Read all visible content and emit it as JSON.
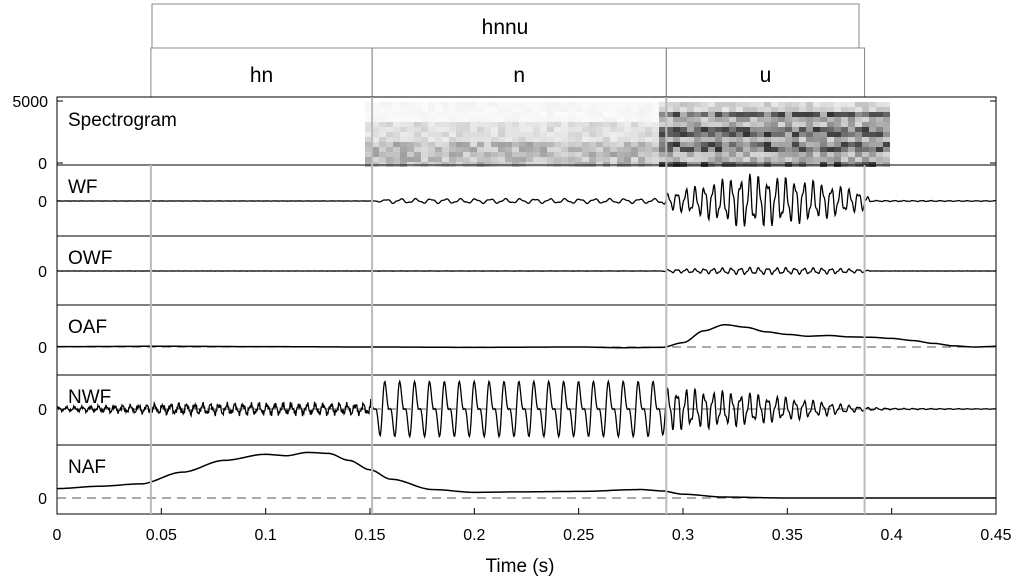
{
  "word": {
    "label": "hnnu"
  },
  "segments": [
    {
      "label": "hn",
      "start": 0.045,
      "end": 0.151
    },
    {
      "label": "n",
      "start": 0.151,
      "end": 0.292
    },
    {
      "label": "u",
      "start": 0.292,
      "end": 0.387
    }
  ],
  "boundaries": [
    0.045,
    0.151,
    0.292,
    0.387
  ],
  "chart_data": {
    "type": "line",
    "xlabel": "Time (s)",
    "xlim": [
      0,
      0.45
    ],
    "xticks": [
      0,
      0.05,
      0.1,
      0.15,
      0.2,
      0.25,
      0.3,
      0.35,
      0.4,
      0.45
    ],
    "xtick_labels": [
      "0",
      "0.05",
      "0.1",
      "0.15",
      "0.2",
      "0.25",
      "0.3",
      "0.35",
      "0.4",
      "0.45"
    ],
    "grid": false,
    "panels": [
      {
        "id": "spectrogram",
        "label": "Spectrogram",
        "type": "heatmap",
        "ylim": [
          0,
          5000
        ],
        "yticks": [
          0,
          5000
        ],
        "ytick_labels": [
          "0",
          "5000"
        ],
        "description_regions": [
          {
            "t0": 0.151,
            "t1": 0.292,
            "intensity": 0.35
          },
          {
            "t0": 0.292,
            "t1": 0.387,
            "intensity": 0.9
          }
        ]
      },
      {
        "id": "wf",
        "label": "WF",
        "yticks": [
          0
        ],
        "ytick_labels": [
          "0"
        ],
        "zero_line": false,
        "envelope": [
          [
            0.0,
            0.003
          ],
          [
            0.151,
            0.003
          ],
          [
            0.16,
            0.08
          ],
          [
            0.29,
            0.08
          ],
          [
            0.292,
            0.25
          ],
          [
            0.33,
            0.9
          ],
          [
            0.36,
            0.7
          ],
          [
            0.387,
            0.3
          ],
          [
            0.39,
            0.02
          ],
          [
            0.45,
            0.01
          ]
        ]
      },
      {
        "id": "owf",
        "label": "OWF",
        "yticks": [
          0
        ],
        "ytick_labels": [
          "0"
        ],
        "zero_line": false,
        "envelope": [
          [
            0.0,
            0.002
          ],
          [
            0.29,
            0.002
          ],
          [
            0.292,
            0.05
          ],
          [
            0.33,
            0.12
          ],
          [
            0.37,
            0.1
          ],
          [
            0.387,
            0.05
          ],
          [
            0.39,
            0.002
          ],
          [
            0.45,
            0.002
          ]
        ]
      },
      {
        "id": "oaf",
        "label": "OAF",
        "yticks": [
          0
        ],
        "ytick_labels": [
          "0"
        ],
        "zero_line": true,
        "x": [
          0,
          0.05,
          0.1,
          0.15,
          0.2,
          0.25,
          0.27,
          0.29,
          0.3,
          0.31,
          0.32,
          0.33,
          0.34,
          0.35,
          0.36,
          0.37,
          0.38,
          0.39,
          0.4,
          0.41,
          0.42,
          0.43,
          0.44,
          0.45
        ],
        "y": [
          0.01,
          0.02,
          0.01,
          0.0,
          -0.01,
          0.0,
          -0.02,
          -0.01,
          0.12,
          0.45,
          0.62,
          0.55,
          0.42,
          0.35,
          0.3,
          0.32,
          0.28,
          0.27,
          0.24,
          0.18,
          0.1,
          0.03,
          0.0,
          0.02
        ]
      },
      {
        "id": "nwf",
        "label": "NWF",
        "yticks": [
          0
        ],
        "ytick_labels": [
          "0"
        ],
        "zero_line": true,
        "envelope": [
          [
            0.0,
            0.05
          ],
          [
            0.06,
            0.15
          ],
          [
            0.15,
            0.15
          ],
          [
            0.155,
            0.9
          ],
          [
            0.29,
            0.9
          ],
          [
            0.292,
            0.6
          ],
          [
            0.33,
            0.45
          ],
          [
            0.36,
            0.25
          ],
          [
            0.387,
            0.05
          ],
          [
            0.4,
            0.02
          ],
          [
            0.45,
            0.005
          ]
        ]
      },
      {
        "id": "naf",
        "label": "NAF",
        "yticks": [
          0
        ],
        "ytick_labels": [
          "0"
        ],
        "zero_line": true,
        "x": [
          0,
          0.02,
          0.04,
          0.06,
          0.08,
          0.1,
          0.11,
          0.12,
          0.13,
          0.14,
          0.15,
          0.16,
          0.18,
          0.2,
          0.22,
          0.25,
          0.28,
          0.29,
          0.3,
          0.32,
          0.35,
          0.4,
          0.45
        ],
        "y": [
          0.2,
          0.25,
          0.3,
          0.55,
          0.8,
          0.93,
          0.9,
          0.97,
          0.95,
          0.8,
          0.6,
          0.4,
          0.18,
          0.12,
          0.13,
          0.14,
          0.18,
          0.15,
          0.08,
          0.02,
          0.0,
          0.0,
          0.0
        ]
      }
    ]
  }
}
